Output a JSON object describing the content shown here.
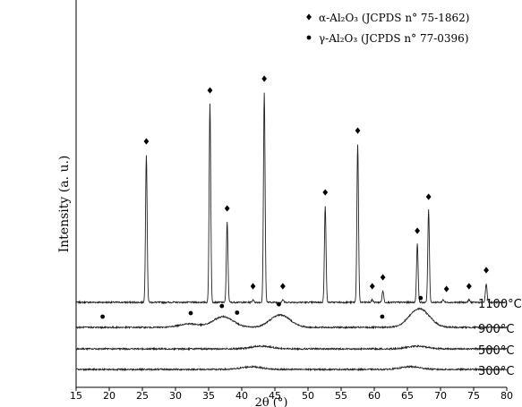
{
  "chart_data": {
    "type": "line",
    "xlabel": "2θ (°)",
    "ylabel": "Intensity (a. u.)",
    "xlim": [
      15,
      80
    ],
    "x_ticks": [
      "15",
      "20",
      "25",
      "30",
      "35",
      "40",
      "45",
      "50",
      "55",
      "60",
      "65",
      "70",
      "75",
      "80"
    ],
    "grid": false,
    "legend_position": "top-right",
    "legend": [
      {
        "marker": "diamond",
        "label": "α-Al₂O₃ (JCPDS n° 75-1862)"
      },
      {
        "marker": "circle",
        "label": "γ-Al₂O₃ (JCPDS n° 77-0396)"
      }
    ],
    "series": [
      {
        "name": "1100°C",
        "baseline": 80,
        "peaks": [
          {
            "x": 25.6,
            "height": 165
          },
          {
            "x": 35.2,
            "height": 222
          },
          {
            "x": 37.8,
            "height": 90
          },
          {
            "x": 41.7,
            "height": 3
          },
          {
            "x": 43.4,
            "height": 235
          },
          {
            "x": 46.2,
            "height": 3
          },
          {
            "x": 52.6,
            "height": 108
          },
          {
            "x": 57.5,
            "height": 177
          },
          {
            "x": 59.7,
            "height": 3
          },
          {
            "x": 61.3,
            "height": 13
          },
          {
            "x": 66.5,
            "height": 65
          },
          {
            "x": 68.2,
            "height": 103
          },
          {
            "x": 70.4,
            "height": 3
          },
          {
            "x": 74.3,
            "height": 3
          },
          {
            "x": 76.9,
            "height": 21
          }
        ],
        "markers": [
          {
            "x": 25.6,
            "type": "diamond"
          },
          {
            "x": 35.2,
            "type": "diamond"
          },
          {
            "x": 37.8,
            "type": "diamond"
          },
          {
            "x": 41.7,
            "type": "diamond"
          },
          {
            "x": 43.4,
            "type": "diamond"
          },
          {
            "x": 46.2,
            "type": "diamond"
          },
          {
            "x": 52.6,
            "type": "diamond"
          },
          {
            "x": 57.5,
            "type": "diamond"
          },
          {
            "x": 59.7,
            "type": "diamond"
          },
          {
            "x": 61.3,
            "type": "diamond"
          },
          {
            "x": 66.5,
            "type": "diamond"
          },
          {
            "x": 68.2,
            "type": "diamond"
          },
          {
            "x": 70.9,
            "type": "diamond"
          },
          {
            "x": 74.3,
            "type": "diamond"
          },
          {
            "x": 76.9,
            "type": "diamond"
          }
        ]
      },
      {
        "name": "900°C",
        "baseline": 52,
        "broad_peaks": [
          {
            "x": 37.2,
            "height": 12
          },
          {
            "x": 45.8,
            "height": 14
          },
          {
            "x": 66.8,
            "height": 21
          },
          {
            "x": 32.0,
            "height": 4
          }
        ],
        "markers": [
          {
            "x": 19.0,
            "type": "circle"
          },
          {
            "x": 32.3,
            "type": "circle"
          },
          {
            "x": 37.0,
            "type": "circle"
          },
          {
            "x": 39.3,
            "type": "circle"
          },
          {
            "x": 45.6,
            "type": "circle"
          },
          {
            "x": 61.2,
            "type": "circle"
          },
          {
            "x": 67.0,
            "type": "circle"
          }
        ]
      },
      {
        "name": "500°C",
        "baseline": 28,
        "broad_peaks": [
          {
            "x": 43.0,
            "height": 3
          },
          {
            "x": 66.5,
            "height": 3
          }
        ],
        "markers": []
      },
      {
        "name": "300°C",
        "baseline": 5,
        "broad_peaks": [
          {
            "x": 41.5,
            "height": 3
          },
          {
            "x": 65.5,
            "height": 3
          }
        ],
        "markers": []
      }
    ]
  }
}
